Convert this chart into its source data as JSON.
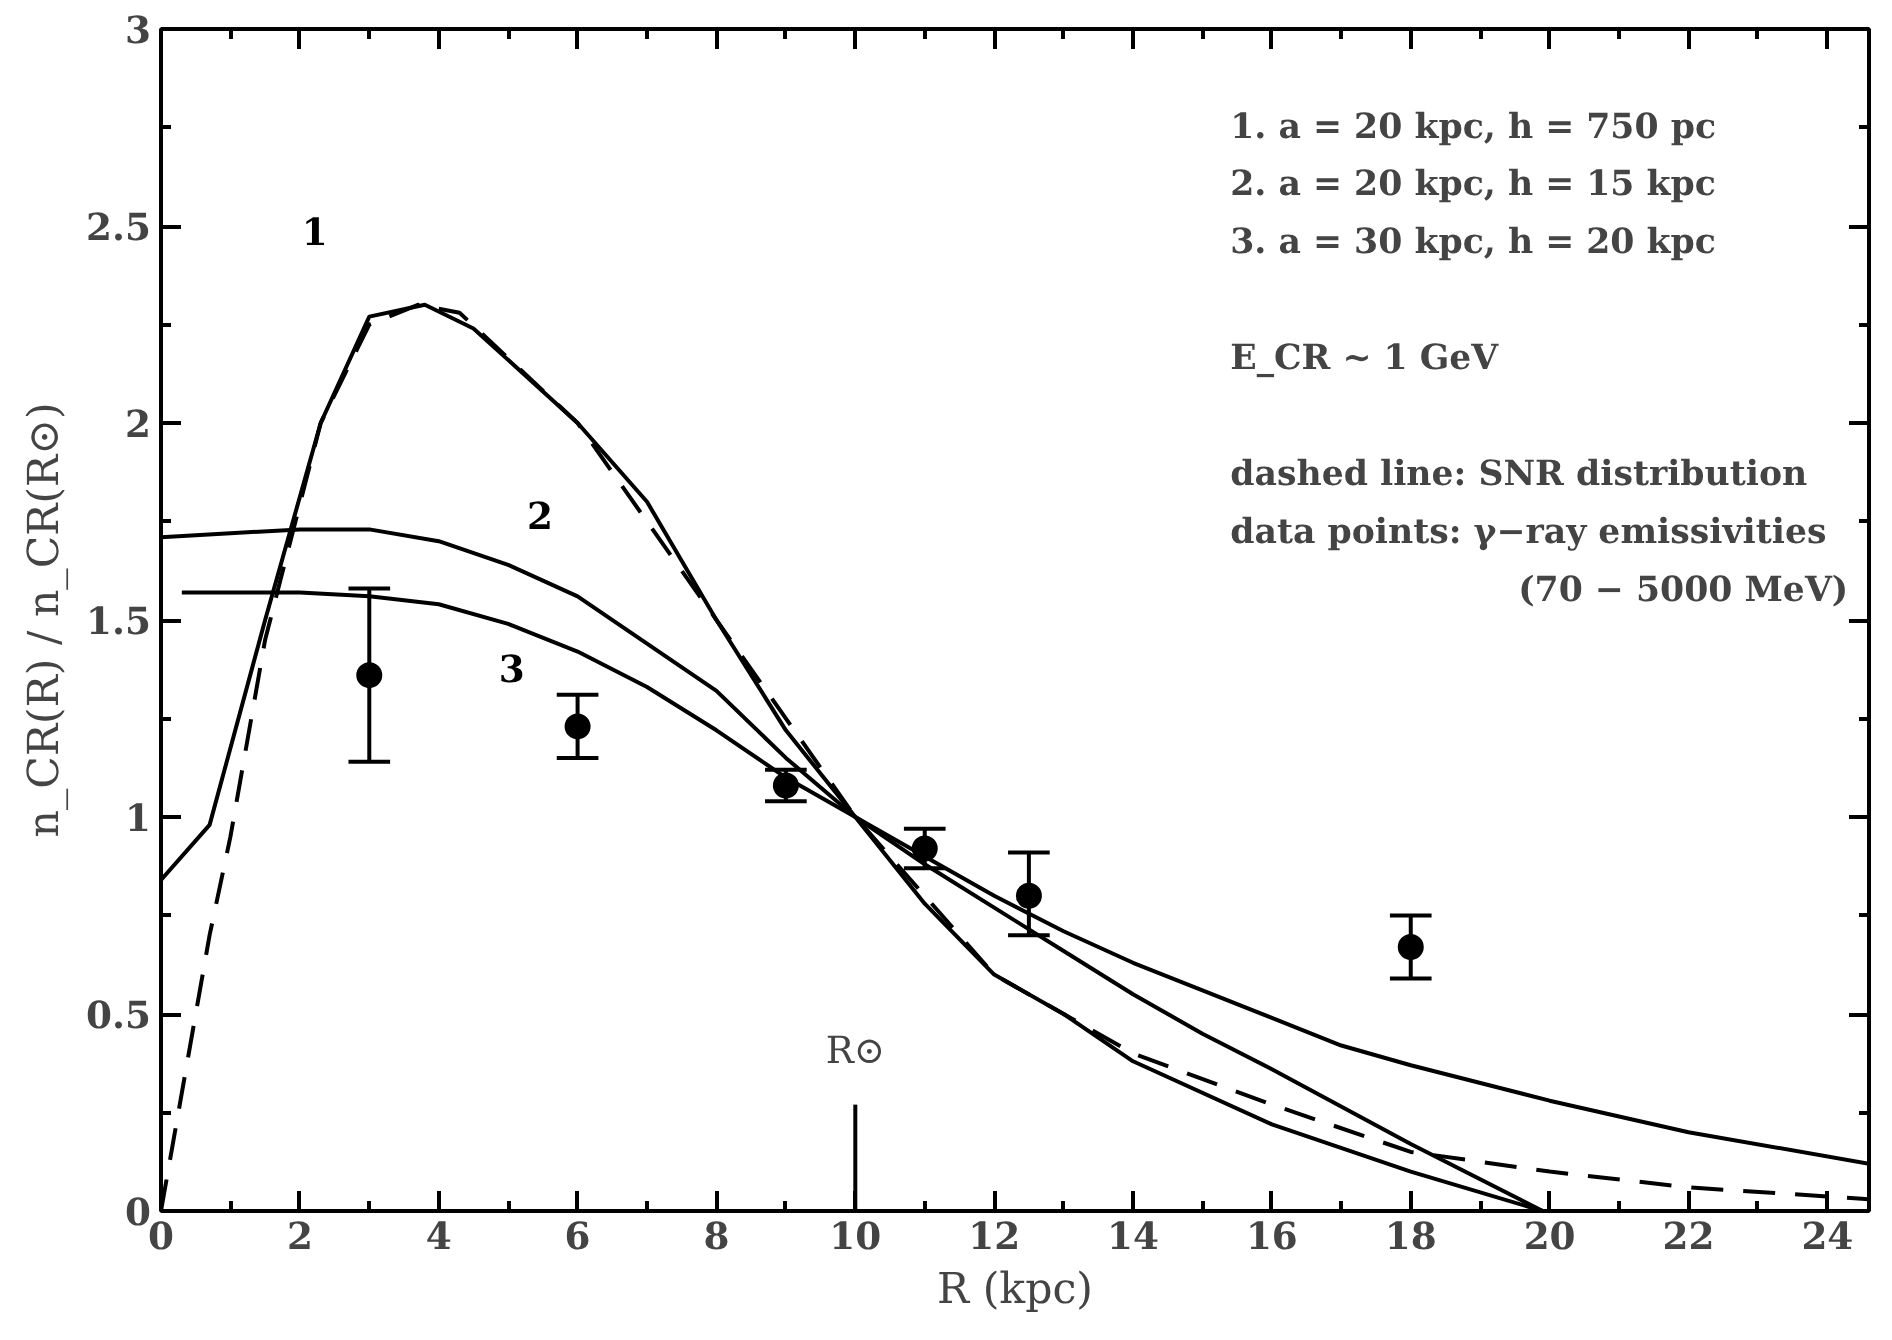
{
  "chart_data": {
    "type": "line",
    "xlabel": "R (kpc)",
    "ylabel": "n_CR(R) / n_CR(R⊙)",
    "xlim": [
      0,
      24.6
    ],
    "ylim": [
      0,
      3
    ],
    "xticks": [
      0,
      2,
      4,
      6,
      8,
      10,
      12,
      14,
      16,
      18,
      20,
      22,
      24
    ],
    "yticks": [
      0,
      0.5,
      1,
      1.5,
      2,
      2.5,
      3
    ],
    "grid": false,
    "legend": false,
    "series": [
      {
        "name": "1",
        "color": "#000000",
        "line_style": "solid",
        "x": [
          0,
          0.7,
          1.5,
          2.3,
          3,
          3.8,
          4.5,
          6,
          7,
          8,
          9,
          10,
          11,
          12,
          13,
          14,
          16,
          18,
          19.9
        ],
        "values": [
          0.84,
          0.98,
          1.5,
          2.0,
          2.27,
          2.3,
          2.24,
          2.0,
          1.8,
          1.5,
          1.22,
          1.0,
          0.78,
          0.6,
          0.5,
          0.38,
          0.22,
          0.1,
          0
        ]
      },
      {
        "name": "2",
        "color": "#000000",
        "line_style": "solid",
        "x": [
          0,
          1,
          2,
          3,
          4,
          5,
          6,
          7,
          8,
          9,
          10,
          11,
          12,
          13,
          14,
          15,
          16,
          18,
          19.9
        ],
        "values": [
          1.71,
          1.72,
          1.73,
          1.73,
          1.7,
          1.64,
          1.56,
          1.44,
          1.32,
          1.15,
          1.0,
          0.88,
          0.77,
          0.66,
          0.55,
          0.45,
          0.36,
          0.17,
          0
        ]
      },
      {
        "name": "3",
        "color": "#000000",
        "line_style": "solid",
        "x": [
          0.3,
          2,
          3,
          4,
          5,
          6,
          7,
          8,
          9,
          10,
          11,
          12,
          13,
          14,
          15,
          16,
          17,
          18,
          20,
          22,
          24.6
        ],
        "values": [
          1.57,
          1.57,
          1.56,
          1.54,
          1.49,
          1.42,
          1.33,
          1.22,
          1.1,
          1.0,
          0.9,
          0.8,
          0.71,
          0.63,
          0.56,
          0.49,
          0.42,
          0.37,
          0.28,
          0.2,
          0.12
        ]
      },
      {
        "color": "#000000",
        "line_style": "dashed",
        "x": [
          0,
          0.3,
          0.7,
          1,
          1.5,
          2.3,
          3,
          3.7,
          4.3,
          6,
          8,
          10,
          12,
          14,
          16,
          18,
          20,
          22,
          24.6
        ],
        "values": [
          0,
          0.3,
          0.7,
          0.95,
          1.45,
          2.0,
          2.25,
          2.3,
          2.28,
          2.0,
          1.5,
          1.0,
          0.6,
          0.4,
          0.27,
          0.15,
          0.1,
          0.06,
          0.03
        ]
      },
      {
        "type": "scatter",
        "color": "#000000",
        "marker": "circle",
        "x": [
          3,
          6,
          9,
          11,
          12.5,
          18
        ],
        "values": [
          1.36,
          1.23,
          1.08,
          0.92,
          0.8,
          0.67
        ],
        "errors": [
          [
            1.14,
            1.58
          ],
          [
            1.15,
            1.31
          ],
          [
            1.04,
            1.12
          ],
          [
            0.87,
            0.97
          ],
          [
            0.7,
            0.91
          ],
          [
            0.59,
            0.75
          ]
        ]
      }
    ],
    "ref_lines": [
      {
        "axis": "x",
        "value": 10,
        "label": "R⊙"
      }
    ],
    "annotations": [
      "1. a = 20 kpc, h = 750 pc",
      "2. a = 20 kpc, h = 15 kpc",
      "3. a = 30 kpc, h = 20 kpc",
      "E_CR ~ 1 GeV",
      "dashed line: SNR distribution",
      "data points: γ−ray emissivities",
      "(70 − 5000 MeV)"
    ]
  }
}
